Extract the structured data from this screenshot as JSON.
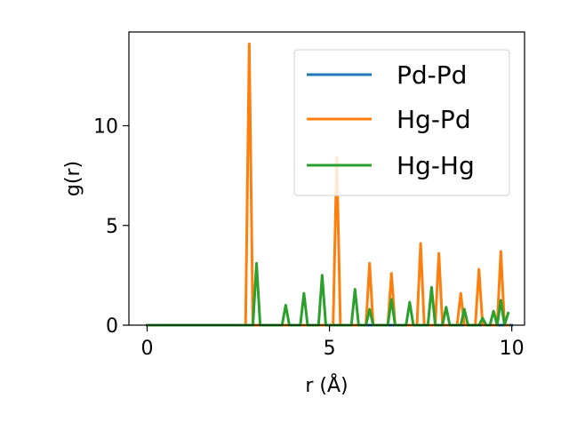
{
  "chart_data": {
    "type": "line",
    "xlabel": "r (Å)",
    "ylabel": "g(r)",
    "xlim": [
      -0.5,
      10.35
    ],
    "ylim": [
      0,
      14.7
    ],
    "xticks": [
      0,
      5,
      10
    ],
    "yticks": [
      0,
      5,
      10
    ],
    "xtick_labels": [
      "0",
      "5",
      "10"
    ],
    "ytick_labels": [
      "0",
      "5",
      "10"
    ],
    "grid": false,
    "legend_position": "top-right",
    "series": [
      {
        "name": "Pd-Pd",
        "color": "#1f77b4",
        "x": [
          0,
          10
        ],
        "y": [
          0,
          0
        ]
      },
      {
        "name": "Hg-Pd",
        "color": "#ff7f0e",
        "x": [
          0,
          2.7,
          2.8,
          2.9,
          5.1,
          5.2,
          5.3,
          6.0,
          6.1,
          6.2,
          6.6,
          6.7,
          6.8,
          7.4,
          7.5,
          7.6,
          7.9,
          8.0,
          8.1,
          8.5,
          8.6,
          8.7,
          9.0,
          9.1,
          9.2,
          9.6,
          9.7,
          9.8,
          9.9
        ],
        "y": [
          0,
          0,
          14.1,
          0,
          0,
          8.4,
          0,
          0,
          3.1,
          0,
          0,
          2.6,
          0,
          0,
          4.1,
          0,
          0,
          3.6,
          0,
          0,
          1.6,
          0,
          0,
          2.8,
          0,
          0,
          3.7,
          0,
          0
        ]
      },
      {
        "name": "Hg-Hg",
        "color": "#2ca02c",
        "x": [
          0,
          2.9,
          3.0,
          3.1,
          3.7,
          3.8,
          3.9,
          4.2,
          4.3,
          4.4,
          4.7,
          4.8,
          4.9,
          5.6,
          5.7,
          5.8,
          6.0,
          6.1,
          6.2,
          6.6,
          6.7,
          6.8,
          7.1,
          7.2,
          7.3,
          7.7,
          7.8,
          7.9,
          8.1,
          8.2,
          8.3,
          8.6,
          8.7,
          8.8,
          9.1,
          9.2,
          9.3,
          9.4,
          9.5,
          9.6,
          9.7,
          9.8,
          9.9
        ],
        "y": [
          0,
          0,
          3.1,
          0,
          0,
          1.0,
          0,
          0,
          1.6,
          0,
          0,
          2.5,
          0,
          0,
          1.8,
          0,
          0,
          0.8,
          0,
          0,
          1.3,
          0,
          0,
          1.15,
          0,
          0,
          1.9,
          0,
          0,
          0.9,
          0,
          0,
          0.8,
          0,
          0,
          0.35,
          0,
          0,
          0.7,
          0,
          1.25,
          0,
          0.6
        ]
      }
    ]
  }
}
